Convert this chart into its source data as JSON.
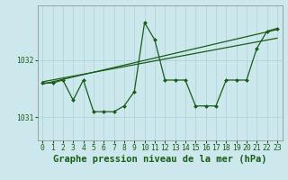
{
  "bg_color": "#cce8ec",
  "grid_color": "#a8d4d8",
  "line_color": "#1a5c1a",
  "title": "Graphe pression niveau de la mer (hPa)",
  "xlim": [
    -0.5,
    23.5
  ],
  "ylim": [
    1030.6,
    1032.95
  ],
  "yticks": [
    1031,
    1032
  ],
  "xticks": [
    0,
    1,
    2,
    3,
    4,
    5,
    6,
    7,
    8,
    9,
    10,
    11,
    12,
    13,
    14,
    15,
    16,
    17,
    18,
    19,
    20,
    21,
    22,
    23
  ],
  "series1": [
    1031.6,
    1031.6,
    1031.65,
    1031.3,
    1031.65,
    1031.1,
    1031.1,
    1031.1,
    1031.2,
    1031.45,
    1032.65,
    1032.35,
    1031.65,
    1031.65,
    1031.65,
    1031.2,
    1031.2,
    1031.2,
    1031.65,
    1031.65,
    1031.65,
    1032.2,
    1032.5,
    1032.55
  ],
  "series2_x": [
    0,
    23
  ],
  "series2_y": [
    1031.58,
    1032.53
  ],
  "series3_x": [
    0,
    23
  ],
  "series3_y": [
    1031.62,
    1032.38
  ],
  "marker": "D",
  "markersize": 2.0,
  "linewidth": 0.9,
  "title_fontsize": 7.5,
  "tick_fontsize": 5.8,
  "title_color": "#1a5c1a",
  "tick_color": "#1a5c1a",
  "spine_color": "#888888"
}
